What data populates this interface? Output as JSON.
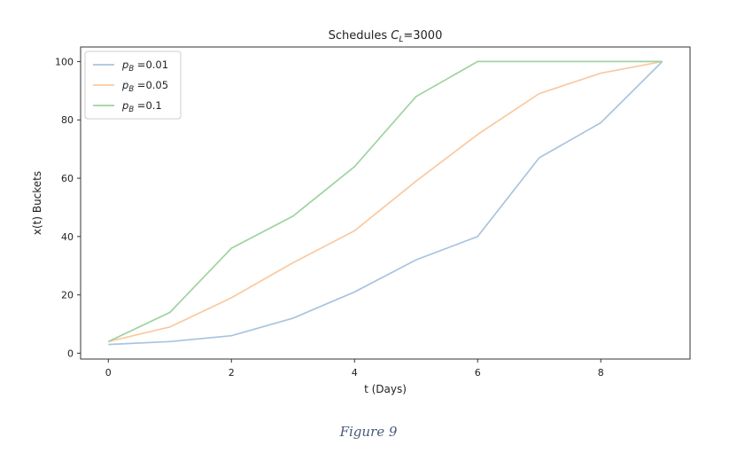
{
  "chart_data": {
    "type": "line",
    "title_main": "Schedules ",
    "title_var": "C",
    "title_sub": "L",
    "title_rest": "=3000",
    "xlabel": "t (Days)",
    "ylabel": "x(t) Buckets",
    "xlim": [
      -0.45,
      9.45
    ],
    "ylim": [
      -2,
      105
    ],
    "xticks": [
      "0",
      "2",
      "4",
      "6",
      "8"
    ],
    "yticks": [
      "0",
      "20",
      "40",
      "60",
      "80",
      "100"
    ],
    "x": [
      0,
      1,
      2,
      3,
      4,
      5,
      6,
      7,
      8,
      9
    ],
    "grid": false,
    "legend_position": "top-left",
    "series": [
      {
        "var": "p",
        "sub": "B",
        "value": " =0.01",
        "color": "#a9c4de",
        "values": [
          3,
          4,
          6,
          12,
          21,
          32,
          40,
          67,
          79,
          100
        ]
      },
      {
        "var": "p",
        "sub": "B",
        "value": " =0.05",
        "color": "#f9c9a0",
        "values": [
          4,
          9,
          19,
          31,
          42,
          59,
          75,
          89,
          96,
          100
        ]
      },
      {
        "var": "p",
        "sub": "B",
        "value": " =0.1",
        "color": "#9fd39f",
        "values": [
          4,
          14,
          36,
          47,
          64,
          88,
          100,
          100,
          100,
          100
        ]
      }
    ]
  },
  "caption": "Figure 9"
}
